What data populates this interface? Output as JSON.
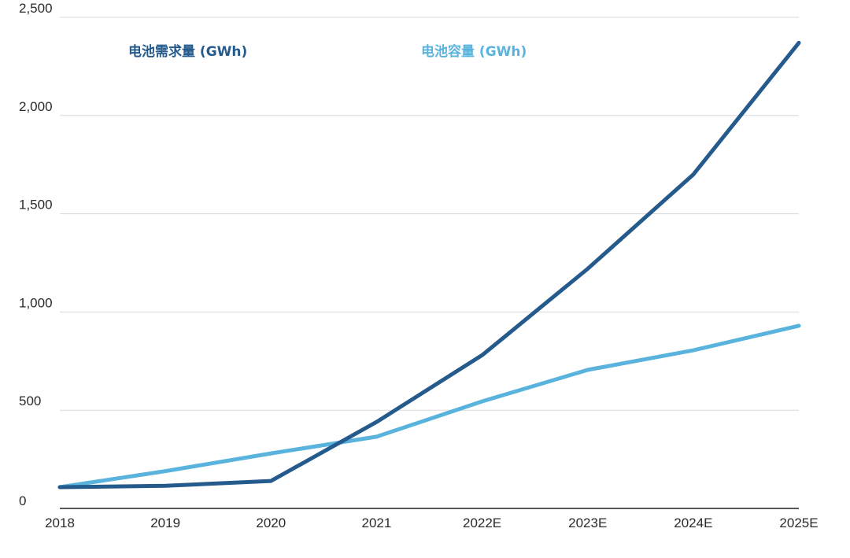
{
  "chart_data": {
    "type": "line",
    "title": "",
    "xlabel": "",
    "ylabel": "",
    "categories": [
      "2018",
      "2019",
      "2020",
      "2021",
      "2022E",
      "2023E",
      "2024E",
      "2025E"
    ],
    "ylim": [
      0,
      2500
    ],
    "yticks": [
      0,
      500,
      1000,
      1500,
      2000,
      2500
    ],
    "ytick_labels": [
      "0",
      "500",
      "1,000",
      "1,500",
      "2,000",
      "2,500"
    ],
    "grid": true,
    "series": [
      {
        "name": "电池需求量 (GWh)",
        "color": "#255a8c",
        "values": [
          108,
          115,
          140,
          440,
          780,
          1220,
          1700,
          2370
        ]
      },
      {
        "name": "电池容量 (GWh)",
        "color": "#5ab3dc",
        "values": [
          108,
          190,
          280,
          365,
          545,
          705,
          805,
          930
        ]
      }
    ]
  }
}
